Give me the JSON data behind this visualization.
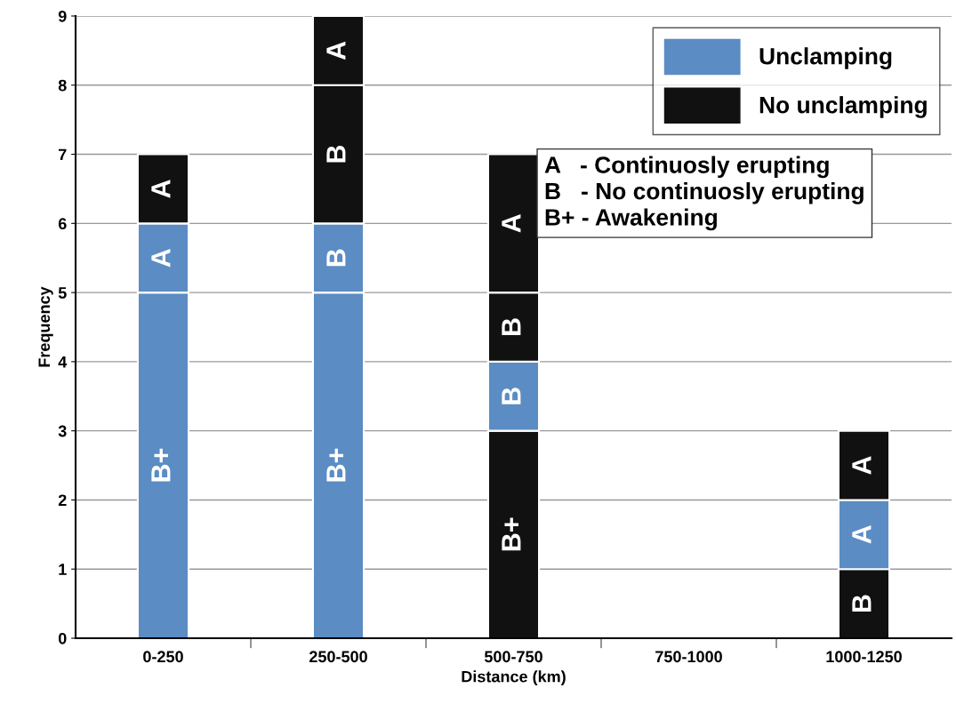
{
  "chart_data": {
    "type": "bar",
    "stacked": true,
    "xlabel": "Distance (km)",
    "ylabel": "Frequency",
    "categories": [
      "0-250",
      "250-500",
      "500-750",
      "750-1000",
      "1000-1250"
    ],
    "ylim": [
      0,
      9
    ],
    "yticks": [
      0,
      1,
      2,
      3,
      4,
      5,
      6,
      7,
      8,
      9
    ],
    "grid": "y",
    "legend": "top right",
    "series": [
      {
        "values": [
          5,
          5,
          3,
          null,
          1
        ],
        "colors": [
          "#5b8cc4",
          "#5b8cc4",
          "#111111",
          null,
          "#111111"
        ],
        "value_labels": [
          "B+",
          "B+",
          "B+",
          null,
          "B"
        ]
      },
      {
        "values": [
          1,
          1,
          1,
          null,
          1
        ],
        "colors": [
          "#5b8cc4",
          "#5b8cc4",
          "#5b8cc4",
          null,
          "#5b8cc4"
        ],
        "value_labels": [
          "A",
          "B",
          "B",
          null,
          "A"
        ]
      },
      {
        "values": [
          1,
          2,
          1,
          null,
          1
        ],
        "colors": [
          "#111111",
          "#111111",
          "#111111",
          null,
          "#111111"
        ],
        "value_labels": [
          "A",
          "B",
          "B",
          null,
          "A"
        ]
      },
      {
        "values": [
          null,
          1,
          2,
          null,
          null
        ],
        "colors": [
          null,
          "#111111",
          "#111111",
          null,
          null
        ],
        "value_labels": [
          null,
          "A",
          "A",
          null,
          null
        ]
      },
      {
        "name": "Unclamping",
        "color": "#5b8cc4",
        "values": [
          null,
          null,
          null,
          null,
          null
        ]
      },
      {
        "name": "No unclamping",
        "color": "#111111",
        "values": [
          null,
          null,
          null,
          null,
          null
        ]
      }
    ],
    "annotations": [
      "A   - Continuosly erupting",
      "B   - No continuosly erupting",
      "B+ - Awakening"
    ]
  }
}
